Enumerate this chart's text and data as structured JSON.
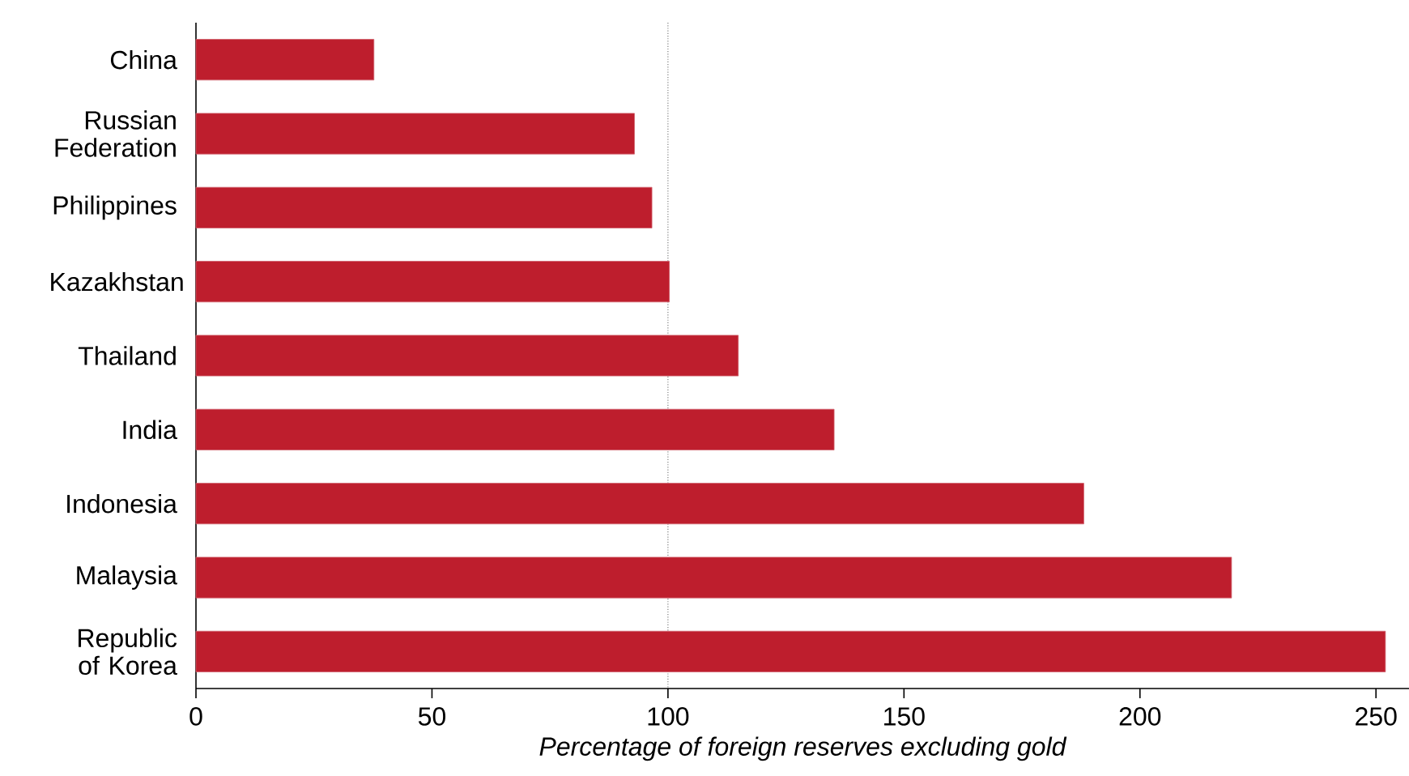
{
  "chart_data": {
    "type": "bar",
    "orientation": "horizontal",
    "categories": [
      "China",
      "Russian Federation",
      "Philippines",
      "Kazakhstan",
      "Thailand",
      "India",
      "Indonesia",
      "Malaysia",
      "Republic of Korea"
    ],
    "values": [
      37.7,
      92.9,
      96.6,
      100.3,
      114.9,
      135.2,
      188.1,
      219.4,
      252.0
    ],
    "color": "#be1e2d",
    "xlim": [
      0,
      257
    ],
    "xticks": [
      0,
      50,
      100,
      150,
      200,
      250
    ],
    "xlabel": "Percentage of foreign reserves excluding gold",
    "ref_lines": [
      {
        "axis": "x",
        "value": 100,
        "line_style": "dotted",
        "color": "#808080"
      }
    ]
  }
}
